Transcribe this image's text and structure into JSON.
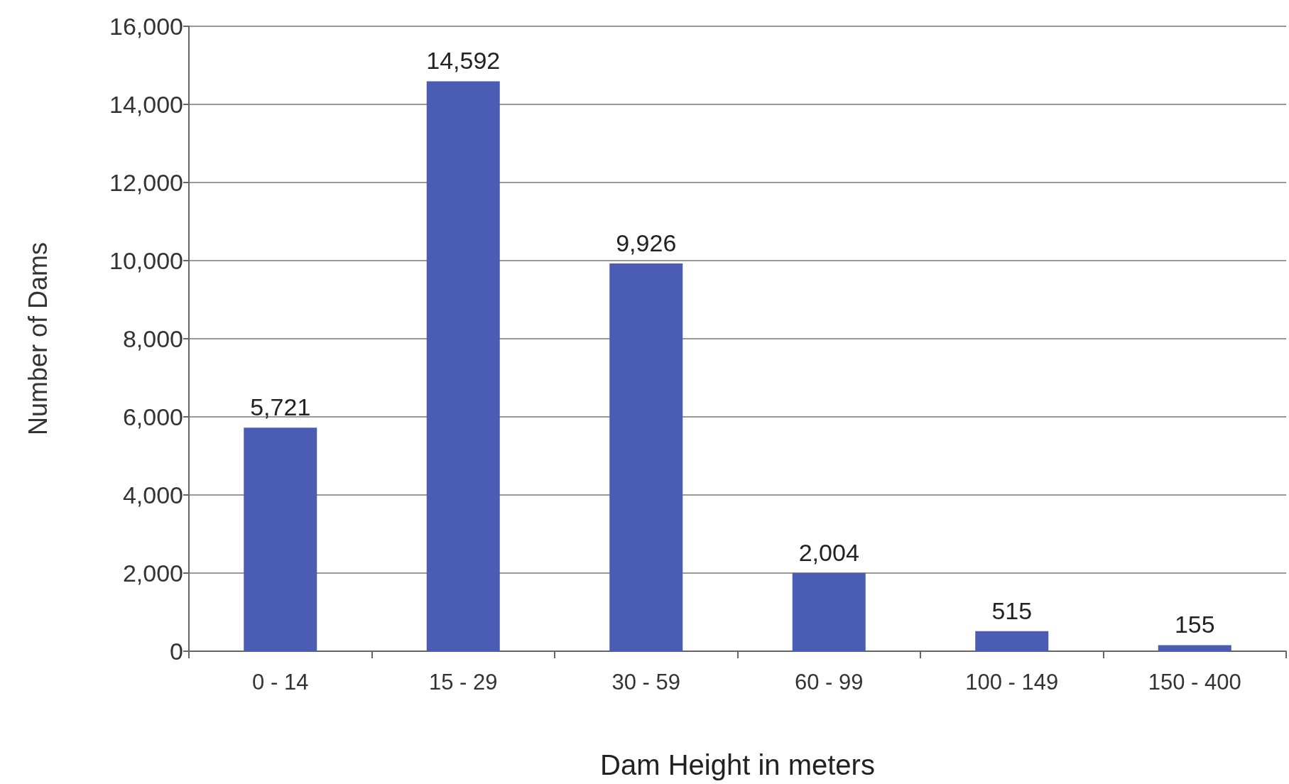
{
  "chart_data": {
    "type": "bar",
    "xlabel": "Dam Height in meters",
    "ylabel": "Number of Dams",
    "categories": [
      "0 - 14",
      "15 - 29",
      "30 - 59",
      "60 - 99",
      "100 - 149",
      "150 - 400"
    ],
    "values": [
      5721,
      14592,
      9926,
      2004,
      515,
      155
    ],
    "value_labels": [
      "5,721",
      "14,592",
      "9,926",
      "2,004",
      "515",
      "155"
    ],
    "color": "#4a5cb4",
    "ylim": [
      0,
      16000
    ],
    "yticks": [
      0,
      {
        "value": 2000,
        "label": "2,000"
      },
      {
        "value": 4000,
        "label": "4,000"
      },
      {
        "value": 6000,
        "label": "6,000"
      },
      {
        "value": 8000,
        "label": "8,000"
      },
      {
        "value": 10000,
        "label": "10,000"
      },
      {
        "value": 12000,
        "label": "12,000"
      },
      {
        "value": 14000,
        "label": "14,000"
      },
      {
        "value": 16000,
        "label": "16,000"
      }
    ],
    "grid": "y"
  }
}
